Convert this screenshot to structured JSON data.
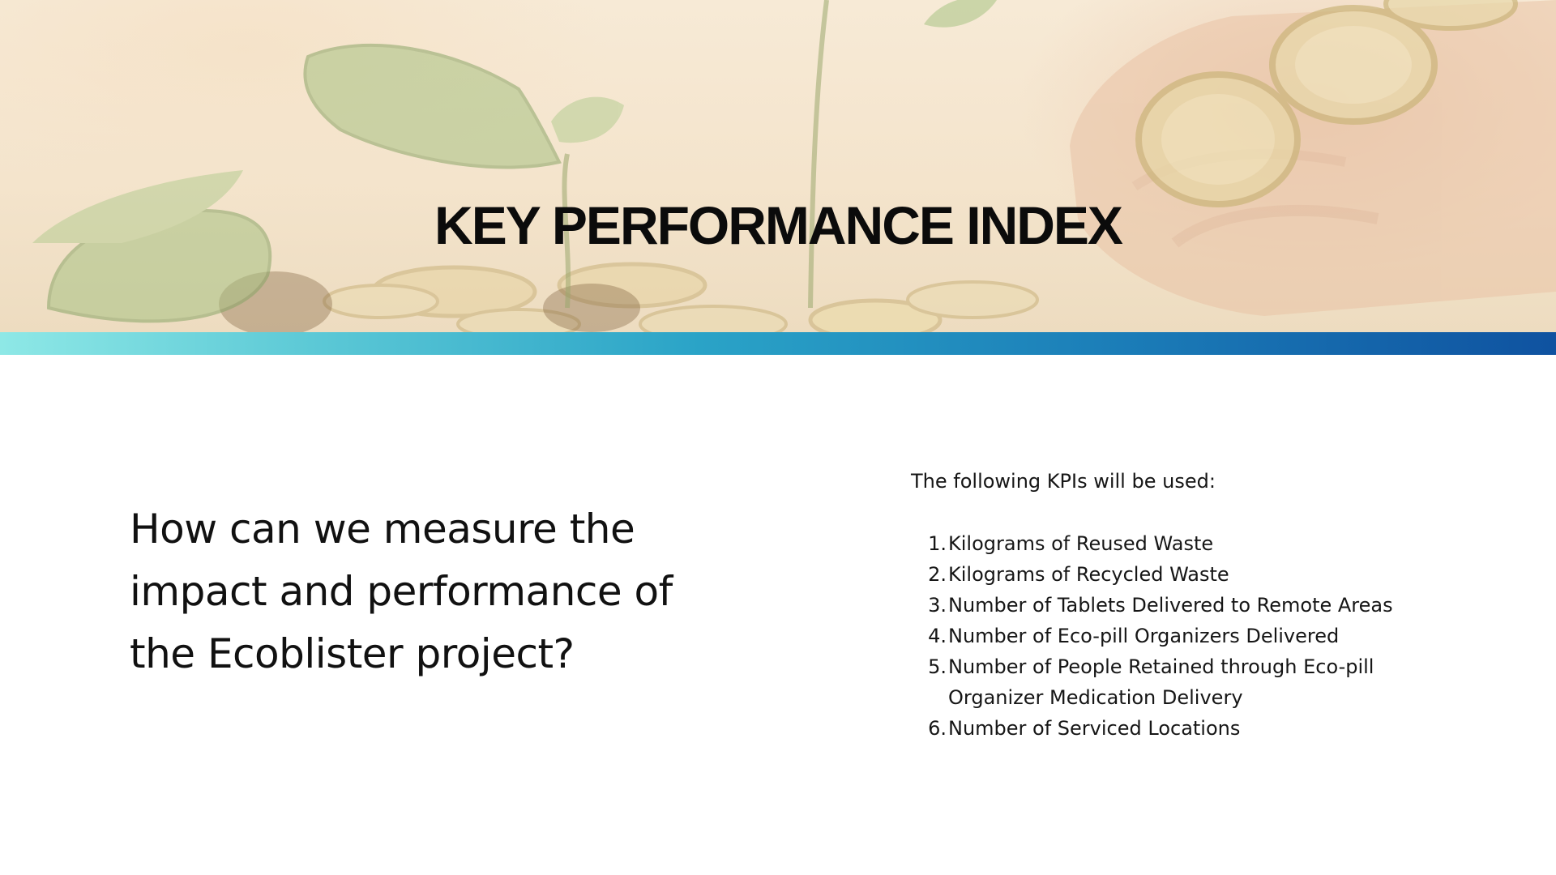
{
  "header": {
    "title": "KEY PERFORMANCE INDEX"
  },
  "colors": {
    "accent_start": "#8ee8e6",
    "accent_end": "#0f52a0",
    "title_text": "#0b0b0b"
  },
  "main": {
    "question": "How can we measure the impact and performance of the Ecoblister project?",
    "kpi_intro": "The following KPIs will be used:",
    "kpis": [
      {
        "number": "1.",
        "label": "Kilograms of Reused Waste"
      },
      {
        "number": "2.",
        "label": "Kilograms of Recycled Waste"
      },
      {
        "number": "3.",
        "label": "Number of Tablets Delivered to Remote Areas"
      },
      {
        "number": "4.",
        "label": "Number of Eco-pill Organizers Delivered"
      },
      {
        "number": "5.",
        "label": "Number of People Retained through Eco-pill Organizer Medication Delivery"
      },
      {
        "number": "6.",
        "label": "Number of Serviced Locations"
      }
    ]
  }
}
